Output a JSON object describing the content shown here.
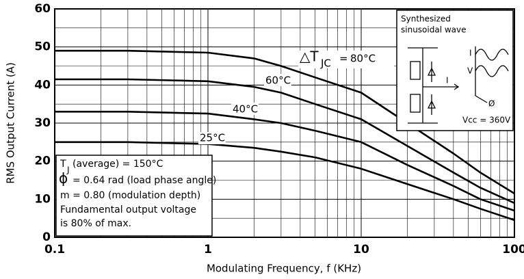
{
  "chart_data": {
    "type": "line",
    "x_label": "Modulating Frequency, f (KHz)",
    "y_label": "RMS Output Current (A)",
    "x": [
      0.1,
      0.3,
      1,
      2,
      3,
      5,
      10,
      20,
      40,
      60,
      100
    ],
    "series": [
      {
        "name": "80°C",
        "color": "#000000",
        "values": [
          49,
          49,
          48.5,
          47,
          45,
          42,
          38,
          30,
          22,
          17,
          11.5
        ]
      },
      {
        "name": "60°C",
        "color": "#000000",
        "values": [
          41.5,
          41.5,
          41,
          39.5,
          38,
          35,
          31,
          24,
          17,
          13,
          9
        ]
      },
      {
        "name": "40°C",
        "color": "#000000",
        "values": [
          33,
          33,
          32.5,
          31,
          30,
          28,
          25,
          19,
          13.5,
          10,
          7
        ]
      },
      {
        "name": "25°C",
        "color": "#000000",
        "values": [
          25,
          25,
          24.5,
          23.5,
          22.5,
          21,
          18,
          14,
          10,
          7.5,
          4.5
        ]
      }
    ],
    "xlim": [
      0.1,
      100
    ],
    "ylim": [
      0,
      60
    ],
    "xticks": [
      0.1,
      1,
      10,
      100
    ],
    "yticks": [
      0,
      10,
      20,
      30,
      40,
      50,
      60
    ],
    "x_log": true,
    "grid": true,
    "curve_label_prefix": {
      "delta": "△T",
      "sub": "JC",
      "eq": "="
    },
    "conditions": {
      "tj_main": "T",
      "tj_sub": "J",
      "tj_rest": "(average) = 150°C",
      "phi": "ϕ",
      "phi_rest": "= 0.64 rad (load phase angle)",
      "m": "m = 0.80 (modulation depth)",
      "fund1": "Fundamental output voltage",
      "fund2": "is 80% of max."
    },
    "inset": {
      "title1": "Synthesized",
      "title2": "sinusoidal wave",
      "vcc": "Vcc = 360V",
      "i_out": "I",
      "i_wave": "I",
      "v_wave": "V",
      "phi": "Ø"
    }
  }
}
